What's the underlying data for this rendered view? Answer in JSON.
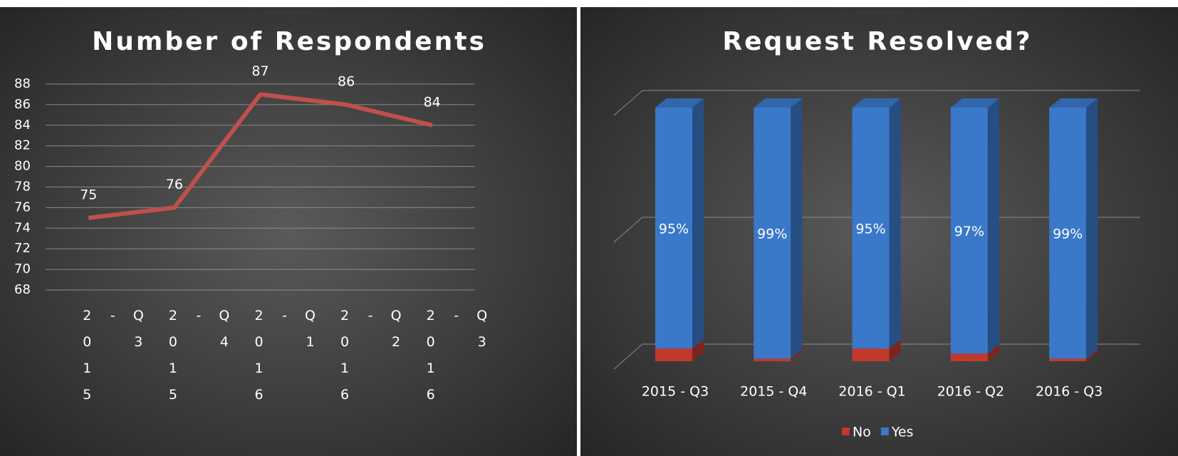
{
  "chart_data": [
    {
      "type": "line",
      "title": "Number of Respondents",
      "categories": [
        "2015 - Q3",
        "2015 - Q4",
        "2016 - Q1",
        "2016 - Q2",
        "2016 - Q3"
      ],
      "series": [
        {
          "name": "Respondents",
          "color": "#c0504d",
          "values": [
            75,
            76,
            87,
            86,
            84
          ]
        }
      ],
      "ylim": [
        68,
        88
      ],
      "yticks": [
        68,
        70,
        72,
        74,
        76,
        78,
        80,
        82,
        84,
        86,
        88
      ],
      "grid": true
    },
    {
      "type": "bar3d_stacked",
      "title": "Request Resolved?",
      "categories": [
        "2015 - Q3",
        "2015 - Q4",
        "2016 - Q1",
        "2016 - Q2",
        "2016 - Q3"
      ],
      "series": [
        {
          "name": "No",
          "color": "#c0392b",
          "values": [
            5,
            1,
            5,
            3,
            1
          ]
        },
        {
          "name": "Yes",
          "color": "#3a78c9",
          "values": [
            95,
            99,
            95,
            97,
            99
          ],
          "value_labels": [
            "95%",
            "99%",
            "95%",
            "97%",
            "99%"
          ]
        }
      ],
      "ylim": [
        0,
        100
      ],
      "yticks": [
        0,
        50,
        100
      ],
      "grid": true,
      "legend": "bottom"
    }
  ]
}
